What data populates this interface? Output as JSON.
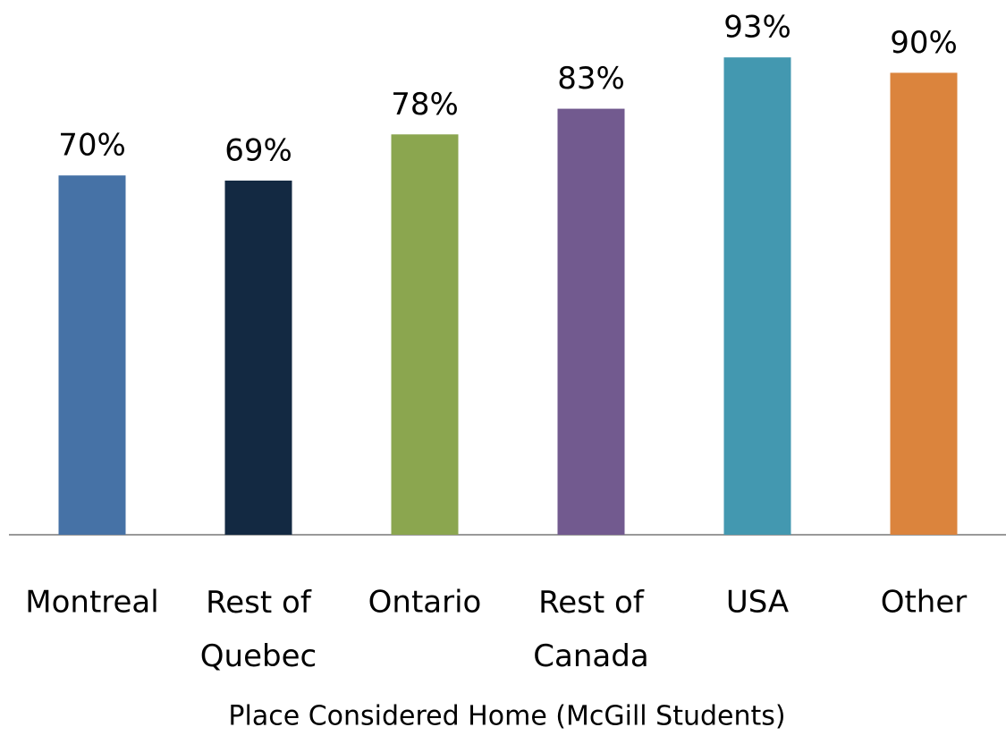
{
  "chart_data": {
    "type": "bar",
    "x_label": "Place Considered Home (McGill Students)",
    "categories": [
      "Montreal",
      "Rest of Quebec",
      "Ontario",
      "Rest of Canada",
      "USA",
      "Other"
    ],
    "values": [
      70,
      69,
      78,
      83,
      93,
      90
    ],
    "value_labels": [
      "70%",
      "69%",
      "78%",
      "83%",
      "93%",
      "90%"
    ],
    "colors": [
      "#4672a6",
      "#132942",
      "#8ba64f",
      "#725a8f",
      "#4398b0",
      "#db843d"
    ],
    "ylim": [
      0,
      100
    ]
  }
}
